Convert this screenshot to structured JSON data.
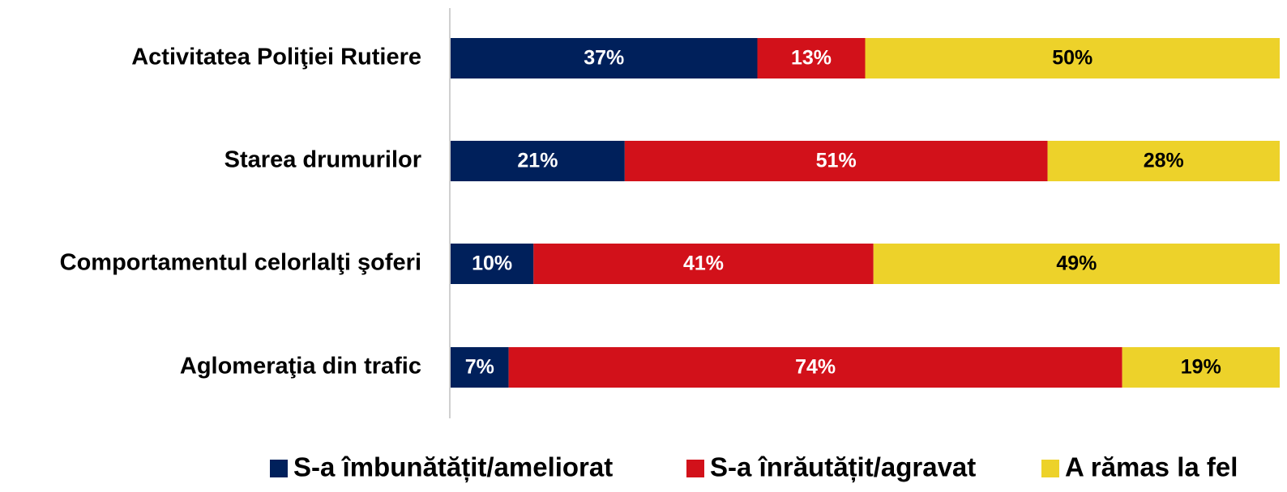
{
  "chart_data": {
    "type": "stacked_barh",
    "categories": [
      "Activitatea Poliţiei Rutiere",
      "Starea drumurilor",
      "Comportamentul celorlalţi şoferi",
      "Aglomeraţia din trafic"
    ],
    "series": [
      {
        "name": "S-a îmbunătățit/ameliorat",
        "color": "#00205b",
        "values": [
          37,
          21,
          10,
          7
        ],
        "value_labels": [
          "37%",
          "21%",
          "10%",
          "7%"
        ]
      },
      {
        "name": "S-a înrăutățit/agravat",
        "color": "#d2111a",
        "values": [
          13,
          51,
          41,
          74
        ],
        "value_labels": [
          "13%",
          "51%",
          "41%",
          "74%"
        ]
      },
      {
        "name": "A rămas la fel",
        "color": "#edd22a",
        "values": [
          50,
          28,
          49,
          19
        ],
        "value_labels": [
          "50%",
          "28%",
          "49%",
          "19%"
        ]
      }
    ],
    "xlim": [
      0,
      100
    ],
    "legend": "bottom"
  }
}
